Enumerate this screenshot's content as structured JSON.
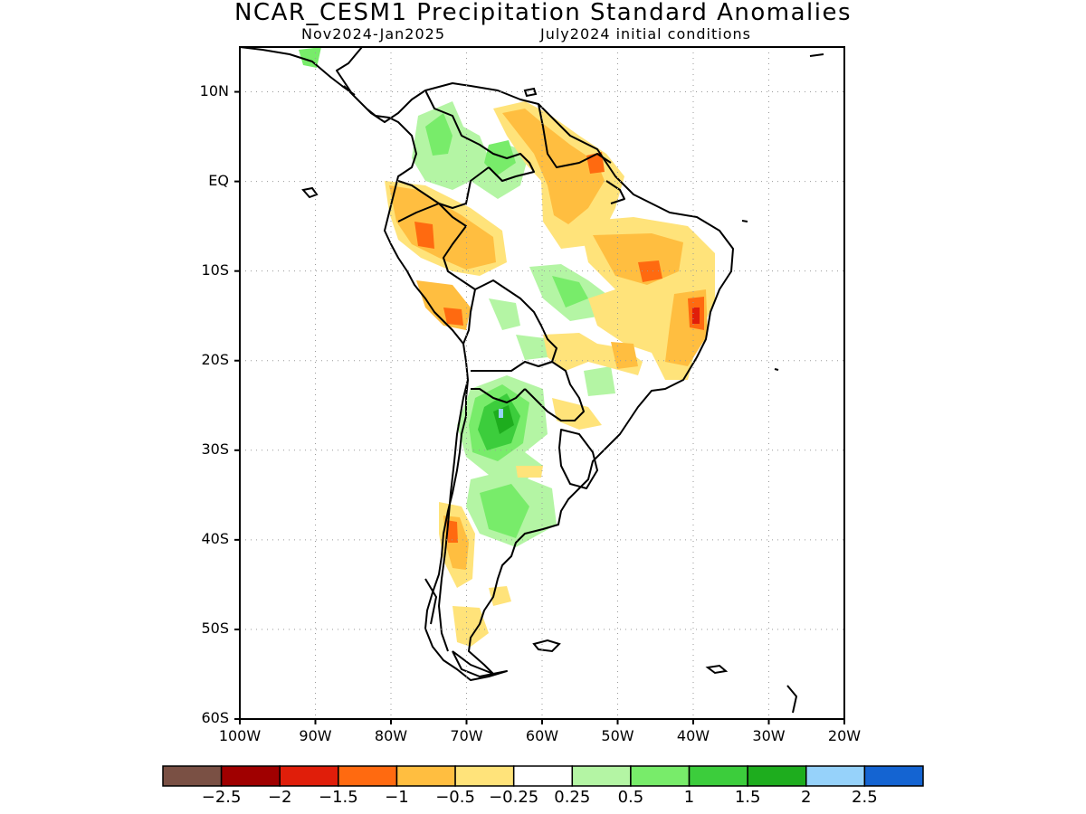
{
  "header": {
    "title": "NCAR_CESM1 Precipitation Standard Anomalies",
    "period": "Nov2024-Jan2025",
    "init": "July2024 initial conditions"
  },
  "map": {
    "lat_range": [
      -60,
      15
    ],
    "lon_range": [
      -100,
      -20
    ],
    "lat_ticks": [
      {
        "value": 10,
        "label": "10N"
      },
      {
        "value": 0,
        "label": "EQ"
      },
      {
        "value": -10,
        "label": "10S"
      },
      {
        "value": -20,
        "label": "20S"
      },
      {
        "value": -30,
        "label": "30S"
      },
      {
        "value": -40,
        "label": "40S"
      },
      {
        "value": -50,
        "label": "50S"
      },
      {
        "value": -60,
        "label": "60S"
      }
    ],
    "lon_ticks": [
      {
        "value": -100,
        "label": "100W"
      },
      {
        "value": -90,
        "label": "90W"
      },
      {
        "value": -80,
        "label": "80W"
      },
      {
        "value": -70,
        "label": "70W"
      },
      {
        "value": -60,
        "label": "60W"
      },
      {
        "value": -50,
        "label": "50W"
      },
      {
        "value": -40,
        "label": "40W"
      },
      {
        "value": -30,
        "label": "30W"
      },
      {
        "value": -20,
        "label": "20W"
      }
    ],
    "grid": "dotted"
  },
  "colorbar": {
    "colors": [
      "#7a5044",
      "#a00000",
      "#e01e0a",
      "#ff6a10",
      "#ffbe40",
      "#ffe37a",
      "#ffffff",
      "#b4f5a4",
      "#78ec6a",
      "#3ccd3c",
      "#1ead1e",
      "#96d2fa",
      "#1464d2"
    ],
    "labels": [
      "-2.5",
      "-2",
      "-1.5",
      "-1",
      "-0.5",
      "-0.25",
      "0.25",
      "0.5",
      "1",
      "1.5",
      "2",
      "2.5"
    ]
  }
}
